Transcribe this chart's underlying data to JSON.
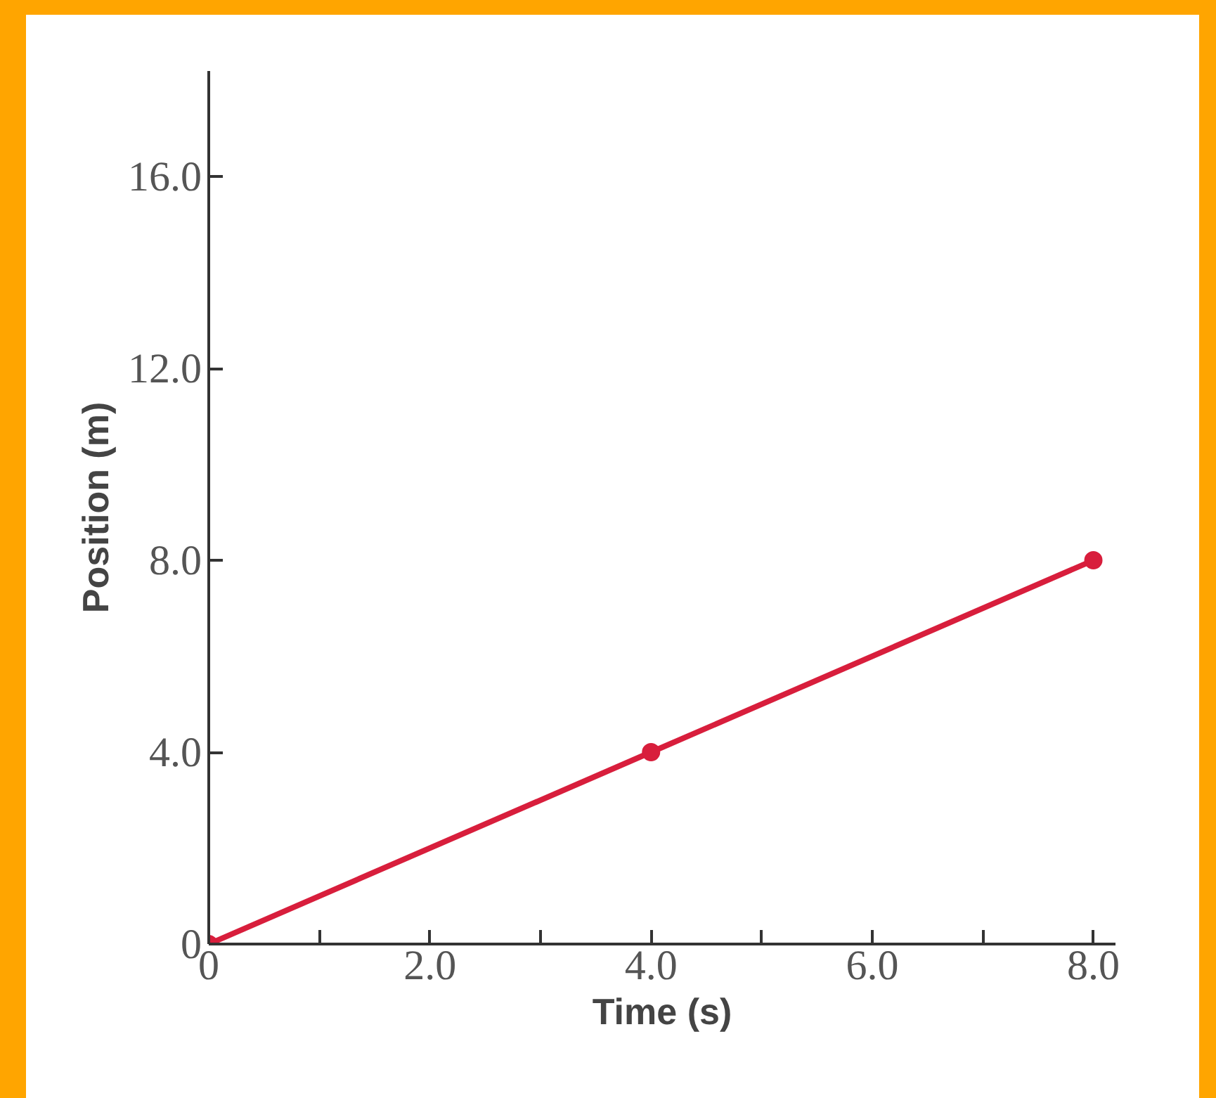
{
  "chart_data": {
    "type": "line",
    "xlabel": "Time (s)",
    "ylabel": "Position (m)",
    "x": [
      0,
      4,
      8
    ],
    "series": [
      {
        "color": "#d81e3c",
        "values": [
          0,
          4,
          8
        ]
      }
    ],
    "xlim": [
      0,
      8.2
    ],
    "ylim": [
      0,
      18.2
    ],
    "xticks": [
      0,
      {
        "value": 1,
        "label": null
      },
      {
        "value": 2,
        "label": "2.0"
      },
      {
        "value": 3,
        "label": null
      },
      {
        "value": 4,
        "label": "4.0"
      },
      {
        "value": 5,
        "label": null
      },
      {
        "value": 6,
        "label": "6.0"
      },
      {
        "value": 7,
        "label": null
      },
      {
        "value": 8,
        "label": "8.0"
      }
    ],
    "yticks": [
      0,
      {
        "value": 4,
        "label": "4.0"
      },
      {
        "value": 8,
        "label": "8.0"
      },
      {
        "value": 12,
        "label": "12.0"
      },
      {
        "value": 16,
        "label": "16.0"
      }
    ],
    "grid": false,
    "marker": "circle",
    "line_style": "solid"
  }
}
